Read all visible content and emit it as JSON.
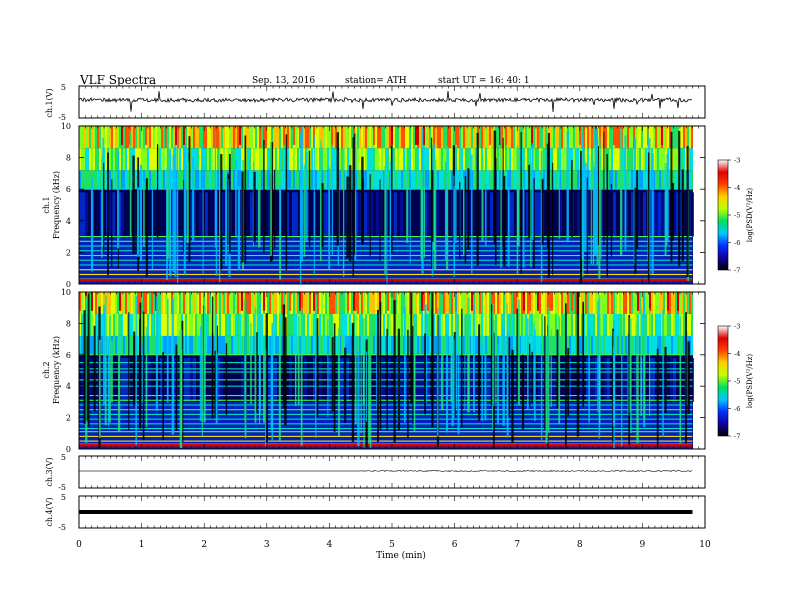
{
  "header": {
    "title": "VLF Spectra",
    "date": "Sep. 13, 2016",
    "station": "station= ATH",
    "start": "start  UT =   16: 40: 1"
  },
  "chart_data": [
    {
      "type": "line",
      "ylabel": "ch.1(V)",
      "ylim": [
        -5,
        5
      ],
      "yticks": [
        "5",
        "-5"
      ],
      "series": [
        {
          "values_summary": "noisy trace near +0.3 V, spikes to about +2.5 / -2.5 V"
        }
      ]
    },
    {
      "type": "heatmap",
      "ylabel": "ch.1\nFrequency  (kHz)",
      "ylabel_ch": "ch.1",
      "ylabel_freq": "Frequency  (kHz)",
      "ylim": [
        0,
        10
      ],
      "yticks": [
        "0",
        "2",
        "4",
        "6",
        "8",
        "10"
      ],
      "colorbar": {
        "label": "log(PSD(V²/Hz)",
        "range": [
          -7,
          -3
        ],
        "ticks": [
          "-3",
          "-4",
          "-5",
          "-6",
          "-7"
        ]
      },
      "structure": "spectrogram: dark blue 0-6 kHz background, green/yellow/red above 6 kHz, vertical sferic streaks, horizontal lines below 3 kHz, red band at 0.2 kHz"
    },
    {
      "type": "heatmap",
      "ylabel_ch": "ch.2",
      "ylabel_freq": "Frequency  (kHz)",
      "ylim": [
        0,
        10
      ],
      "yticks": [
        "0",
        "2",
        "4",
        "6",
        "8",
        "10"
      ],
      "colorbar": {
        "label": "log(PSD(V²/Hz)",
        "range": [
          -7,
          -3
        ],
        "ticks": [
          "-3",
          "-4",
          "-5",
          "-6",
          "-7"
        ]
      },
      "structure": "spectrogram similar to ch.1 with more green horizontal bands between 0 and 6 kHz"
    },
    {
      "type": "line",
      "ylabel": "ch.3(V)",
      "ylim": [
        -5,
        5
      ],
      "yticks": [
        "5",
        "-5"
      ],
      "series": [
        {
          "values_summary": "flat near 0 V with faint noise between 4.5 and 9.8 min"
        }
      ]
    },
    {
      "type": "line",
      "ylabel": "ch.4(V)",
      "ylim": [
        -5,
        5
      ],
      "yticks": [
        "5",
        "-5"
      ],
      "series": [
        {
          "values_summary": "thick flat trace at 0 V"
        }
      ]
    }
  ],
  "xaxis": {
    "label": "Time  (min)",
    "ticks": [
      "0",
      "1",
      "2",
      "3",
      "4",
      "5",
      "6",
      "7",
      "8",
      "9",
      "10"
    ],
    "xlim": [
      0,
      10
    ],
    "data_end": 9.8
  },
  "colors": {
    "cb": [
      "#000000",
      "#1000a0",
      "#0030ff",
      "#00c8ff",
      "#00e060",
      "#c0ff00",
      "#ffd000",
      "#ff4000",
      "#e00000",
      "#ffffff"
    ]
  }
}
